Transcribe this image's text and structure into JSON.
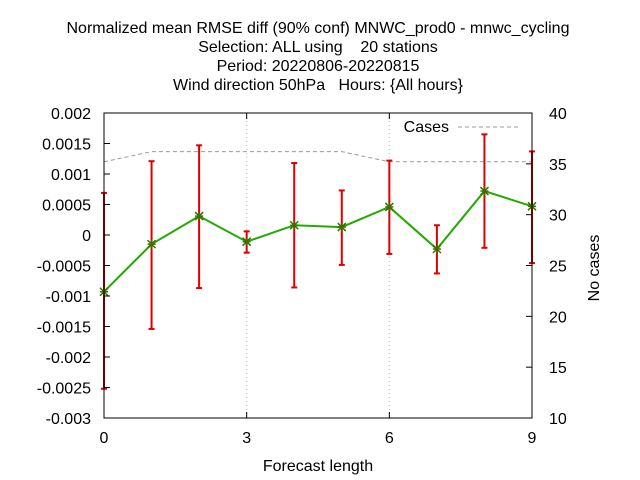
{
  "chart_data": {
    "type": "line",
    "title_lines": [
      "Normalized mean RMSE diff (90% conf) MNWC_prod0 - mnwc_cycling",
      "Selection: ALL using    20 stations",
      "Period: 20220806-20220815",
      "Wind direction 50hPa   Hours: {All hours}"
    ],
    "xlabel": "Forecast length",
    "ylabel": "",
    "y2label": "No cases",
    "xlim": [
      0,
      9
    ],
    "ylim": [
      -0.003,
      0.002
    ],
    "y2lim": [
      10,
      40
    ],
    "x_ticks": [
      "0",
      "3",
      "6",
      "9"
    ],
    "y_ticks": [
      "0.002",
      "0.0015",
      "0.001",
      "0.0005",
      "0",
      "-0.0005",
      "-0.001",
      "-0.0015",
      "-0.002",
      "-0.0025",
      "-0.003"
    ],
    "y2_ticks": [
      "40",
      "35",
      "30",
      "25",
      "20",
      "15",
      "10"
    ],
    "grid": "vertical dotted at x ticks",
    "series": [
      {
        "role": "mean-rmse-diff",
        "color": "#22aa00",
        "marker_color": "#3a6f00",
        "x": [
          0,
          1,
          2,
          3,
          4,
          5,
          6,
          7,
          8,
          9
        ],
        "y": [
          -0.00093,
          -0.00015,
          0.00031,
          -0.00011,
          0.00016,
          0.00013,
          0.00046,
          -0.00023,
          0.00072,
          0.00047
        ]
      },
      {
        "role": "confidence-interval-90",
        "color": "#dd0000",
        "x": [
          0,
          1,
          2,
          3,
          4,
          5,
          6,
          7,
          8,
          9
        ],
        "lower": [
          -0.00252,
          -0.00154,
          -0.00087,
          -0.00029,
          -0.00086,
          -0.00049,
          -0.00031,
          -0.00063,
          -0.00021,
          -0.00046
        ],
        "upper": [
          0.00069,
          0.00121,
          0.00147,
          6e-05,
          0.00118,
          0.00073,
          0.00122,
          0.00016,
          0.00165,
          0.00137
        ]
      },
      {
        "name": "Cases",
        "role": "cases",
        "axis": "y2",
        "color": "#999999",
        "x": [
          0,
          1,
          2,
          3,
          4,
          5,
          6,
          7,
          8,
          9
        ],
        "y": [
          35.2,
          36.2,
          36.2,
          36.2,
          36.2,
          36.2,
          35.2,
          35.2,
          35.2,
          35.2
        ]
      }
    ],
    "legend": {
      "position": "top-right",
      "entries": [
        "Cases"
      ]
    }
  }
}
